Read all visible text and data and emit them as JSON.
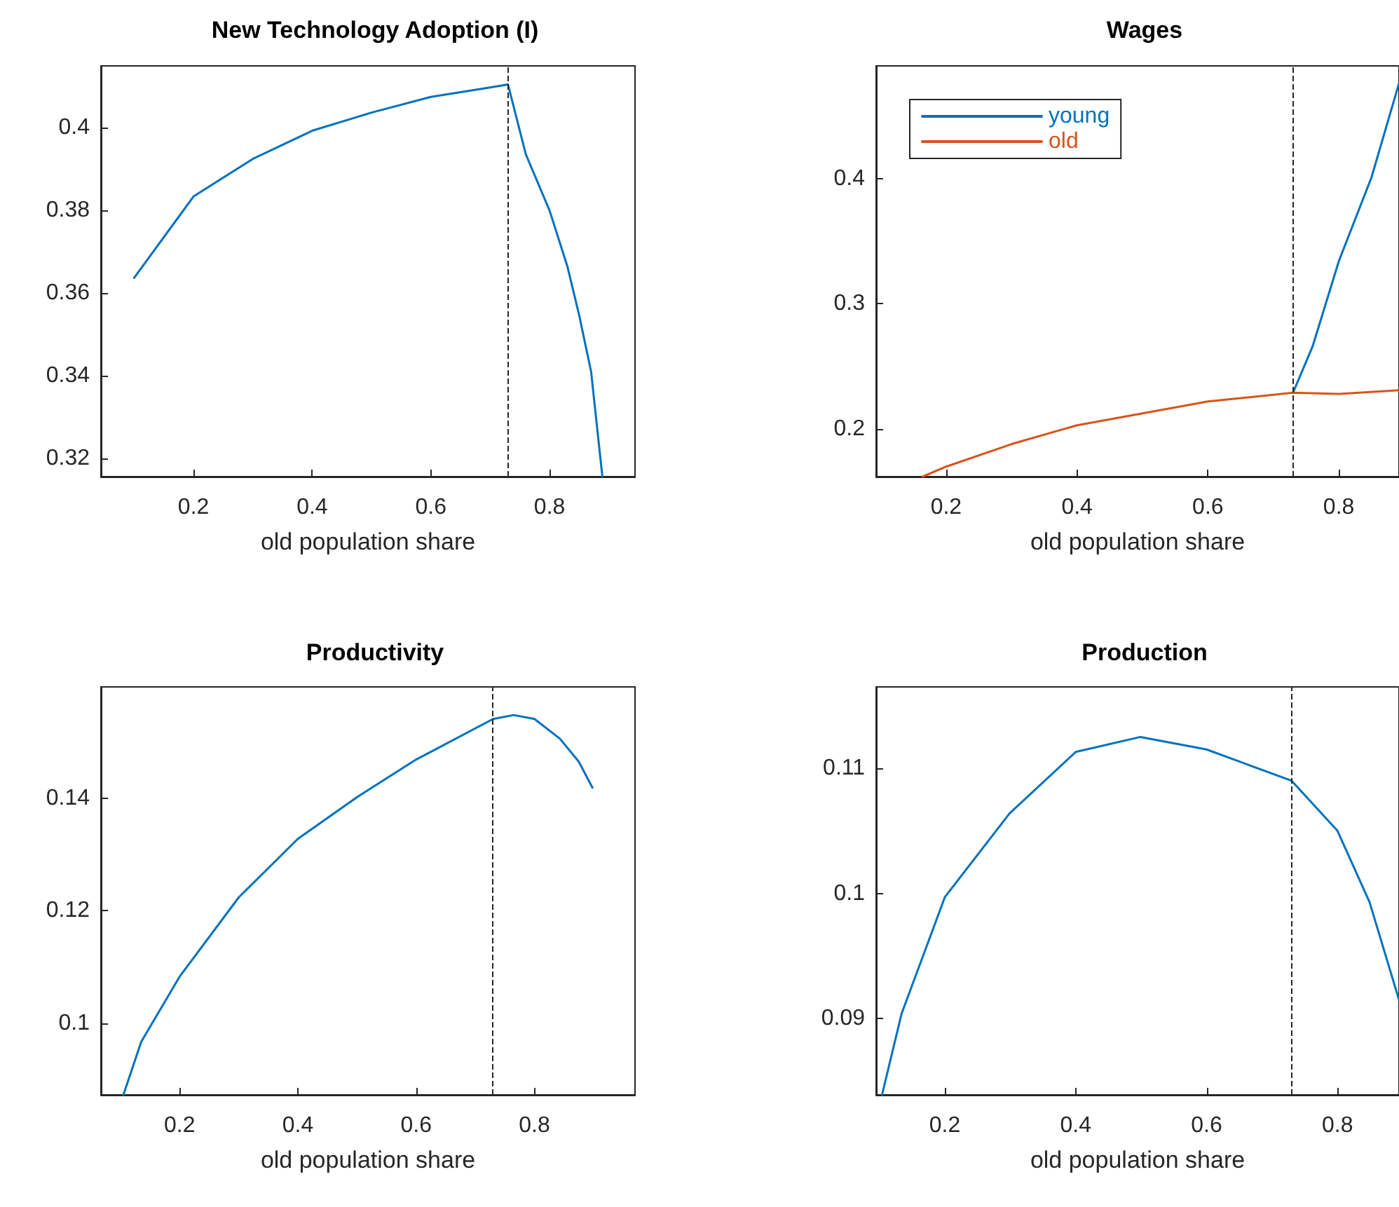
{
  "chart_data": [
    {
      "type": "line",
      "title": "New Technology Adoption (I)",
      "xlabel": "old population share",
      "grid": false,
      "marker": "none",
      "line_style": "solid",
      "xlim": [
        0.044,
        0.944
      ],
      "ylim": [
        0.3156,
        0.415
      ],
      "xticks": [
        0.2,
        0.4,
        0.6,
        0.8
      ],
      "yticks": [
        0.32,
        0.34,
        0.36,
        0.38,
        0.4
      ],
      "series": [
        {
          "color": "#0072bd",
          "x": [
            0.1,
            0.2,
            0.3,
            0.4,
            0.5,
            0.6,
            0.7,
            0.73,
            0.76,
            0.8,
            0.83,
            0.85,
            0.87,
            0.889
          ],
          "values": [
            0.3637,
            0.3834,
            0.3925,
            0.3993,
            0.4037,
            0.4075,
            0.4098,
            0.4105,
            0.3936,
            0.38,
            0.3665,
            0.3546,
            0.341,
            0.3156
          ]
        }
      ],
      "ref_lines": [
        {
          "axis": "x",
          "value": 0.73,
          "color": "#262626",
          "line_style": "dashed"
        }
      ]
    },
    {
      "type": "line",
      "title": "Wages",
      "xlabel": "old population share",
      "grid": false,
      "marker": "none",
      "line_style": "solid",
      "legend": "top left",
      "xlim": [
        0.093,
        0.892
      ],
      "ylim": [
        0.162,
        0.49
      ],
      "xticks": [
        0.2,
        0.4,
        0.6,
        0.8
      ],
      "yticks": [
        0.2,
        0.3,
        0.4
      ],
      "series": [
        {
          "name": "young",
          "color": "#0072bd",
          "x": [
            0.73,
            0.76,
            0.8,
            0.85,
            0.892
          ],
          "values": [
            0.229,
            0.266,
            0.334,
            0.401,
            0.476
          ]
        },
        {
          "name": "old",
          "color": "#d95319",
          "x": [
            0.164,
            0.2,
            0.3,
            0.4,
            0.6,
            0.73,
            0.8,
            0.892
          ],
          "values": [
            0.162,
            0.17,
            0.188,
            0.203,
            0.222,
            0.229,
            0.228,
            0.231
          ]
        }
      ],
      "ref_lines": [
        {
          "axis": "x",
          "value": 0.73,
          "color": "#262626",
          "line_style": "dashed"
        }
      ]
    },
    {
      "type": "line",
      "title": "Productivity",
      "xlabel": "old population share",
      "grid": false,
      "marker": "none",
      "line_style": "solid",
      "xlim": [
        0.067,
        0.97
      ],
      "ylim": [
        0.0873,
        0.1598
      ],
      "xticks": [
        0.2,
        0.4,
        0.6,
        0.8
      ],
      "yticks": [
        0.1,
        0.12,
        0.14
      ],
      "series": [
        {
          "color": "#0072bd",
          "x": [
            0.105,
            0.135,
            0.2,
            0.3,
            0.4,
            0.5,
            0.6,
            0.73,
            0.765,
            0.8,
            0.843,
            0.875,
            0.898
          ],
          "values": [
            0.0873,
            0.0967,
            0.1083,
            0.1224,
            0.1328,
            0.1402,
            0.1469,
            0.1541,
            0.1548,
            0.1541,
            0.1506,
            0.1465,
            0.1419
          ]
        }
      ],
      "ref_lines": [
        {
          "axis": "x",
          "value": 0.73,
          "color": "#262626",
          "line_style": "dashed"
        }
      ]
    },
    {
      "type": "line",
      "title": "Production",
      "xlabel": "old population share",
      "grid": false,
      "marker": "none",
      "line_style": "solid",
      "xlim": [
        0.095,
        0.894
      ],
      "ylim": [
        0.0839,
        0.1165
      ],
      "xticks": [
        0.2,
        0.4,
        0.6,
        0.8
      ],
      "yticks": [
        0.09,
        0.1,
        0.11
      ],
      "series": [
        {
          "color": "#0072bd",
          "x": [
            0.104,
            0.134,
            0.2,
            0.299,
            0.4,
            0.499,
            0.6,
            0.73,
            0.8,
            0.849,
            0.894
          ],
          "values": [
            0.0839,
            0.0904,
            0.0997,
            0.1064,
            0.1113,
            0.1125,
            0.1115,
            0.109,
            0.105,
            0.0993,
            0.0915
          ]
        }
      ],
      "ref_lines": [
        {
          "axis": "x",
          "value": 0.73,
          "color": "#262626",
          "line_style": "dashed"
        }
      ]
    }
  ]
}
